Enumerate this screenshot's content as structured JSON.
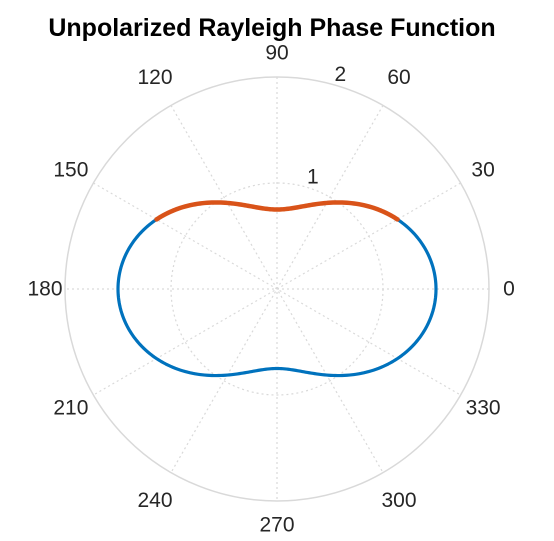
{
  "chart_data": {
    "type": "line",
    "projection": "polar",
    "title": "Unpolarized Rayleigh Phase Function",
    "theta_unit": "degrees",
    "theta_ticks": [
      0,
      30,
      60,
      90,
      120,
      150,
      180,
      210,
      240,
      270,
      300,
      330
    ],
    "theta_tick_labels": [
      "0",
      "30",
      "60",
      "90",
      "120",
      "150",
      "180",
      "210",
      "240",
      "270",
      "300",
      "330"
    ],
    "r_ticks": [
      1,
      2
    ],
    "r_tick_labels": [
      "1",
      "2"
    ],
    "rlim": [
      0,
      2
    ],
    "formula": "0.75*(1+cos^2(theta))",
    "series": [
      {
        "color": "#0072BD",
        "theta_range": [
          0,
          360
        ],
        "theta": [
          0,
          30,
          60,
          90,
          120,
          150,
          180,
          210,
          240,
          270,
          300,
          330,
          360
        ],
        "r": [
          1.5,
          1.3125,
          0.9375,
          0.75,
          0.9375,
          1.3125,
          1.5,
          1.3125,
          0.9375,
          0.75,
          0.9375,
          1.3125,
          1.5
        ]
      },
      {
        "color": "#D95319",
        "theta_range": [
          30,
          150
        ],
        "theta": [
          30,
          60,
          90,
          120,
          150
        ],
        "r": [
          1.3125,
          0.9375,
          0.75,
          0.9375,
          1.3125
        ]
      }
    ],
    "grid": true,
    "grid_color": "#d9d9d9",
    "legend": "none"
  }
}
